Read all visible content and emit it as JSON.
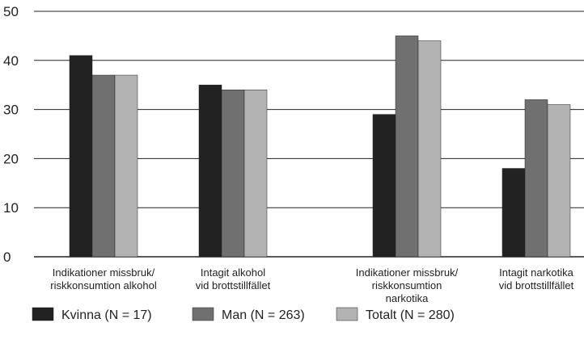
{
  "chart_data": {
    "type": "bar",
    "categories": [
      "Indikationer missbruk/\nriskkonsumtion alkohol",
      "Intagit alkohol\nvid brottstillfället",
      "Indikationer missbruk/\nriskkonsumtion\nnarkotika",
      "Intagit narkotika\nvid brottstillfället"
    ],
    "series": [
      {
        "name": "Kvinna (N = 17)",
        "color": "#222222",
        "values": [
          41,
          35,
          29,
          18
        ]
      },
      {
        "name": "Man (N = 263)",
        "color": "#707070",
        "values": [
          37,
          34,
          45,
          32
        ]
      },
      {
        "name": "Totalt (N = 280)",
        "color": "#b3b3b3",
        "values": [
          37,
          34,
          44,
          31
        ]
      }
    ],
    "ylim": [
      0,
      50
    ],
    "yticks": [
      0,
      10,
      20,
      30,
      40,
      50
    ],
    "grid": true
  }
}
